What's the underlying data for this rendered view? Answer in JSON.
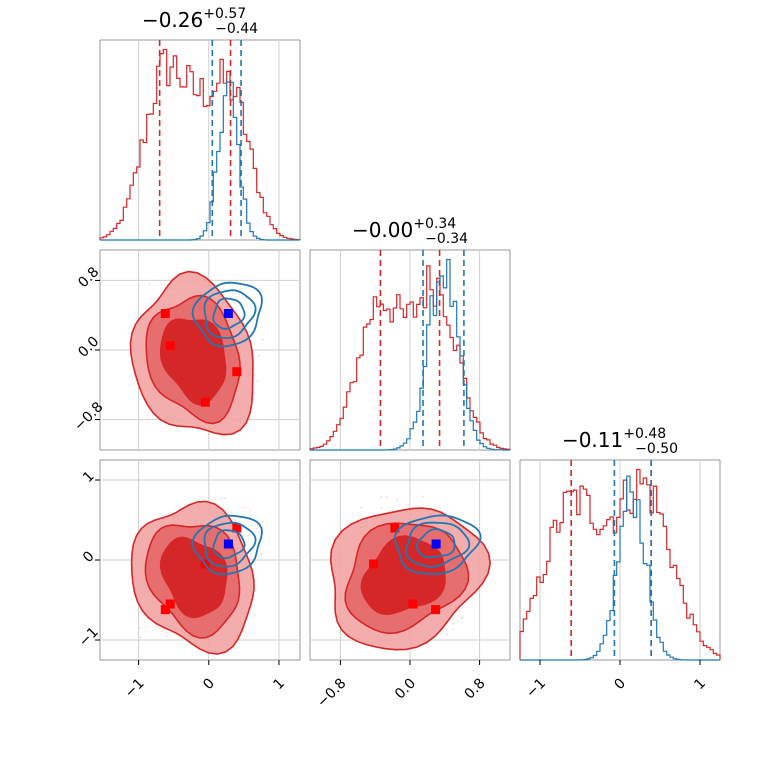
{
  "chart_data": {
    "type": "corner",
    "titles": [
      {
        "median": "−0.26",
        "plus": "+0.57",
        "minus": "−0.44"
      },
      {
        "median": "−0.00",
        "plus": "+0.34",
        "minus": "−0.34"
      },
      {
        "median": "−0.11",
        "plus": "+0.48",
        "minus": "−0.50"
      }
    ],
    "param_ranges": [
      [
        -1.55,
        1.3
      ],
      [
        -1.15,
        1.15
      ],
      [
        -1.25,
        1.25
      ]
    ],
    "x_ticks": [
      {
        "values": [
          -1,
          0,
          1
        ],
        "labels": [
          "−1",
          "0",
          "1"
        ]
      },
      {
        "values": [
          -0.8,
          0.0,
          0.8
        ],
        "labels": [
          "−0.8",
          "0.0",
          "0.8"
        ]
      },
      {
        "values": [
          -1,
          0,
          1
        ],
        "labels": [
          "−1",
          "0",
          "1"
        ]
      }
    ],
    "y_ticks": [
      null,
      {
        "values": [
          -0.8,
          0.0,
          0.8
        ],
        "labels": [
          "−0.8",
          "0.0",
          "0.8"
        ]
      },
      {
        "values": [
          -1,
          0,
          1
        ],
        "labels": [
          "−1",
          "0",
          "1"
        ]
      }
    ],
    "series": [
      {
        "name": "red",
        "color": "#d62728",
        "marker_color": "#ff0000",
        "quantiles": [
          [
            -0.7,
            0.31
          ],
          [
            -0.34,
            0.34
          ],
          [
            -0.61,
            0.39
          ]
        ],
        "modes": [
          [
            -0.62,
            0.42
          ],
          [
            -0.55,
            0.05
          ],
          [
            -0.05,
            -0.6
          ],
          [
            0.4,
            -0.25
          ]
        ],
        "marginal_peaks": [
          [
            [
              -0.65,
              1.0,
              0.3
            ],
            [
              0.0,
              0.75,
              0.35
            ],
            [
              0.4,
              0.55,
              0.25
            ]
          ],
          [
            [
              -0.35,
              0.8,
              0.25
            ],
            [
              0.3,
              0.9,
              0.25
            ]
          ],
          [
            [
              -0.6,
              0.9,
              0.35
            ],
            [
              0.3,
              1.0,
              0.35
            ]
          ]
        ]
      },
      {
        "name": "blue",
        "color": "#1f77b4",
        "marker_color": "#0000ff",
        "quantiles": [
          [
            0.05,
            0.46
          ],
          [
            0.15,
            0.62
          ],
          [
            -0.07,
            0.39
          ]
        ],
        "modes": [
          [
            0.28,
            0.18
          ]
        ],
        "marginal_peaks": [
          [
            [
              0.28,
              1.0,
              0.14
            ]
          ],
          [
            [
              0.38,
              1.0,
              0.17
            ]
          ],
          [
            [
              0.15,
              1.0,
              0.17
            ]
          ]
        ]
      }
    ]
  }
}
